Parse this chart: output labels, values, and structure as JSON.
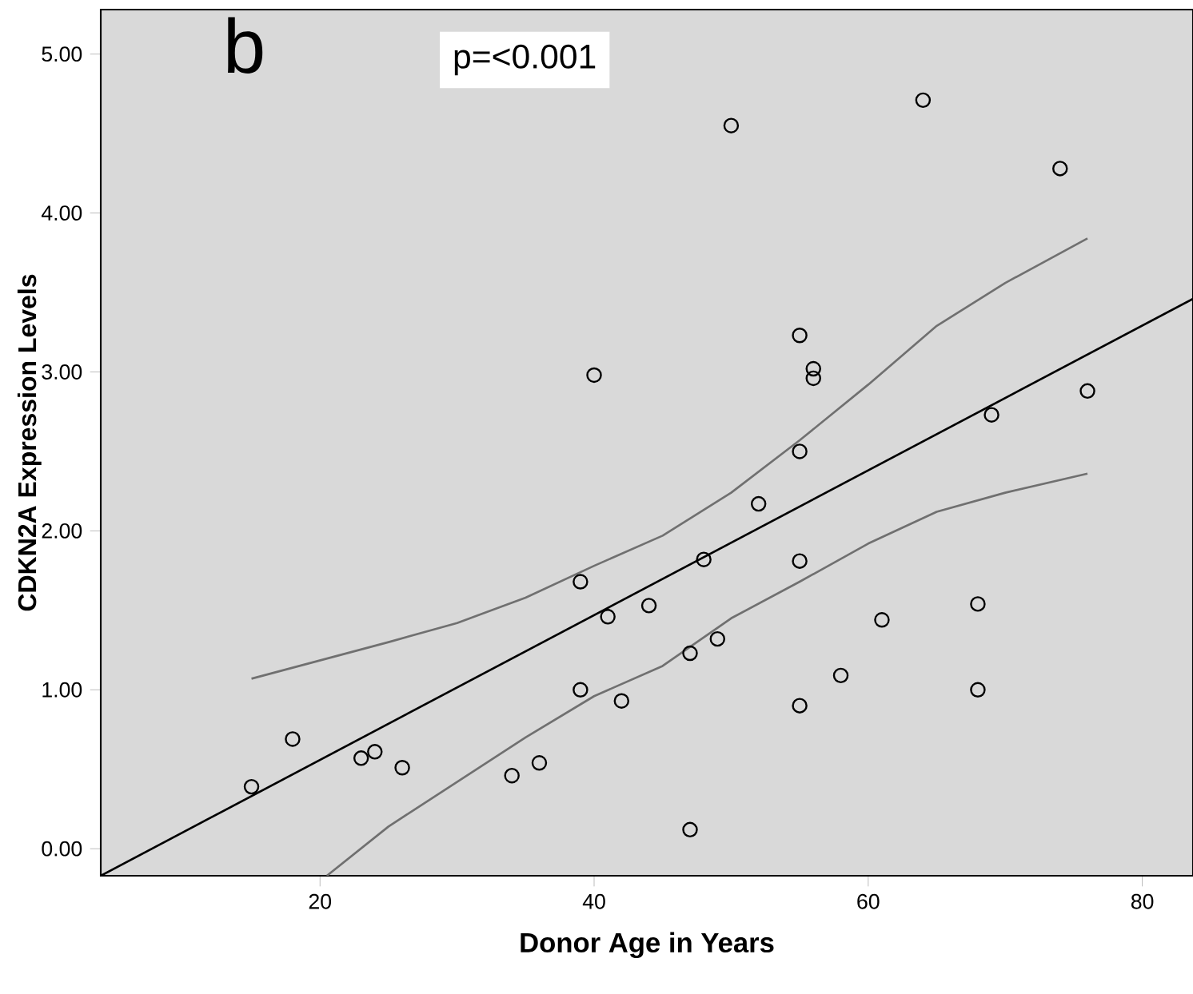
{
  "chart_data": {
    "type": "scatter",
    "xlabel": "Donor Age in Years",
    "ylabel": "CDKN2A Expression Levels",
    "annotations": [
      "b",
      "p=<0.001"
    ],
    "xlim": [
      4,
      83.7
    ],
    "ylim": [
      -0.17,
      5.28
    ],
    "xticks": [
      20,
      40,
      60,
      80
    ],
    "yticks": [
      {
        "value": 0,
        "label": "0.00"
      },
      {
        "value": 1,
        "label": "1.00"
      },
      {
        "value": 2,
        "label": "2.00"
      },
      {
        "value": 3,
        "label": "3.00"
      },
      {
        "value": 4,
        "label": "4.00"
      },
      {
        "value": 5,
        "label": "5.00"
      }
    ],
    "grid": false,
    "series": [
      {
        "marker": "circle",
        "color": "#000000",
        "x": [
          15,
          18,
          23,
          24,
          26,
          34,
          36,
          39,
          39,
          40,
          41,
          42,
          44,
          47,
          47,
          48,
          49,
          50,
          52,
          55,
          55,
          55,
          55,
          56,
          56,
          58,
          61,
          64,
          68,
          68,
          69,
          74,
          76
        ],
        "values": [
          0.39,
          0.69,
          0.57,
          0.61,
          0.51,
          0.46,
          0.54,
          1.0,
          1.68,
          2.98,
          1.46,
          0.93,
          1.53,
          1.23,
          0.12,
          1.82,
          1.32,
          4.55,
          2.17,
          3.23,
          2.5,
          1.81,
          0.9,
          3.02,
          2.96,
          1.09,
          1.44,
          4.71,
          1.54,
          1.0,
          2.73,
          4.28,
          2.88
        ]
      },
      {
        "type": "line",
        "marker": "none",
        "line_style": "solid",
        "color": "#000000",
        "x": [
          4,
          83.7
        ],
        "values": [
          -0.17,
          3.46
        ]
      },
      {
        "type": "line",
        "marker": "none",
        "line_style": "solid",
        "color": "#707070",
        "x": [
          15,
          25,
          30,
          35,
          40,
          45,
          50,
          55,
          60,
          65,
          70,
          76
        ],
        "values": [
          1.07,
          1.3,
          1.42,
          1.58,
          1.78,
          1.97,
          2.24,
          2.57,
          2.92,
          3.29,
          3.56,
          3.84
        ]
      },
      {
        "type": "line",
        "marker": "none",
        "line_style": "solid",
        "color": "#707070",
        "x": [
          20.5,
          25,
          30,
          35,
          40,
          45,
          50,
          55,
          60,
          65,
          70,
          76
        ],
        "values": [
          -0.17,
          0.14,
          0.42,
          0.7,
          0.96,
          1.15,
          1.45,
          1.68,
          1.92,
          2.12,
          2.24,
          2.36
        ]
      }
    ]
  }
}
